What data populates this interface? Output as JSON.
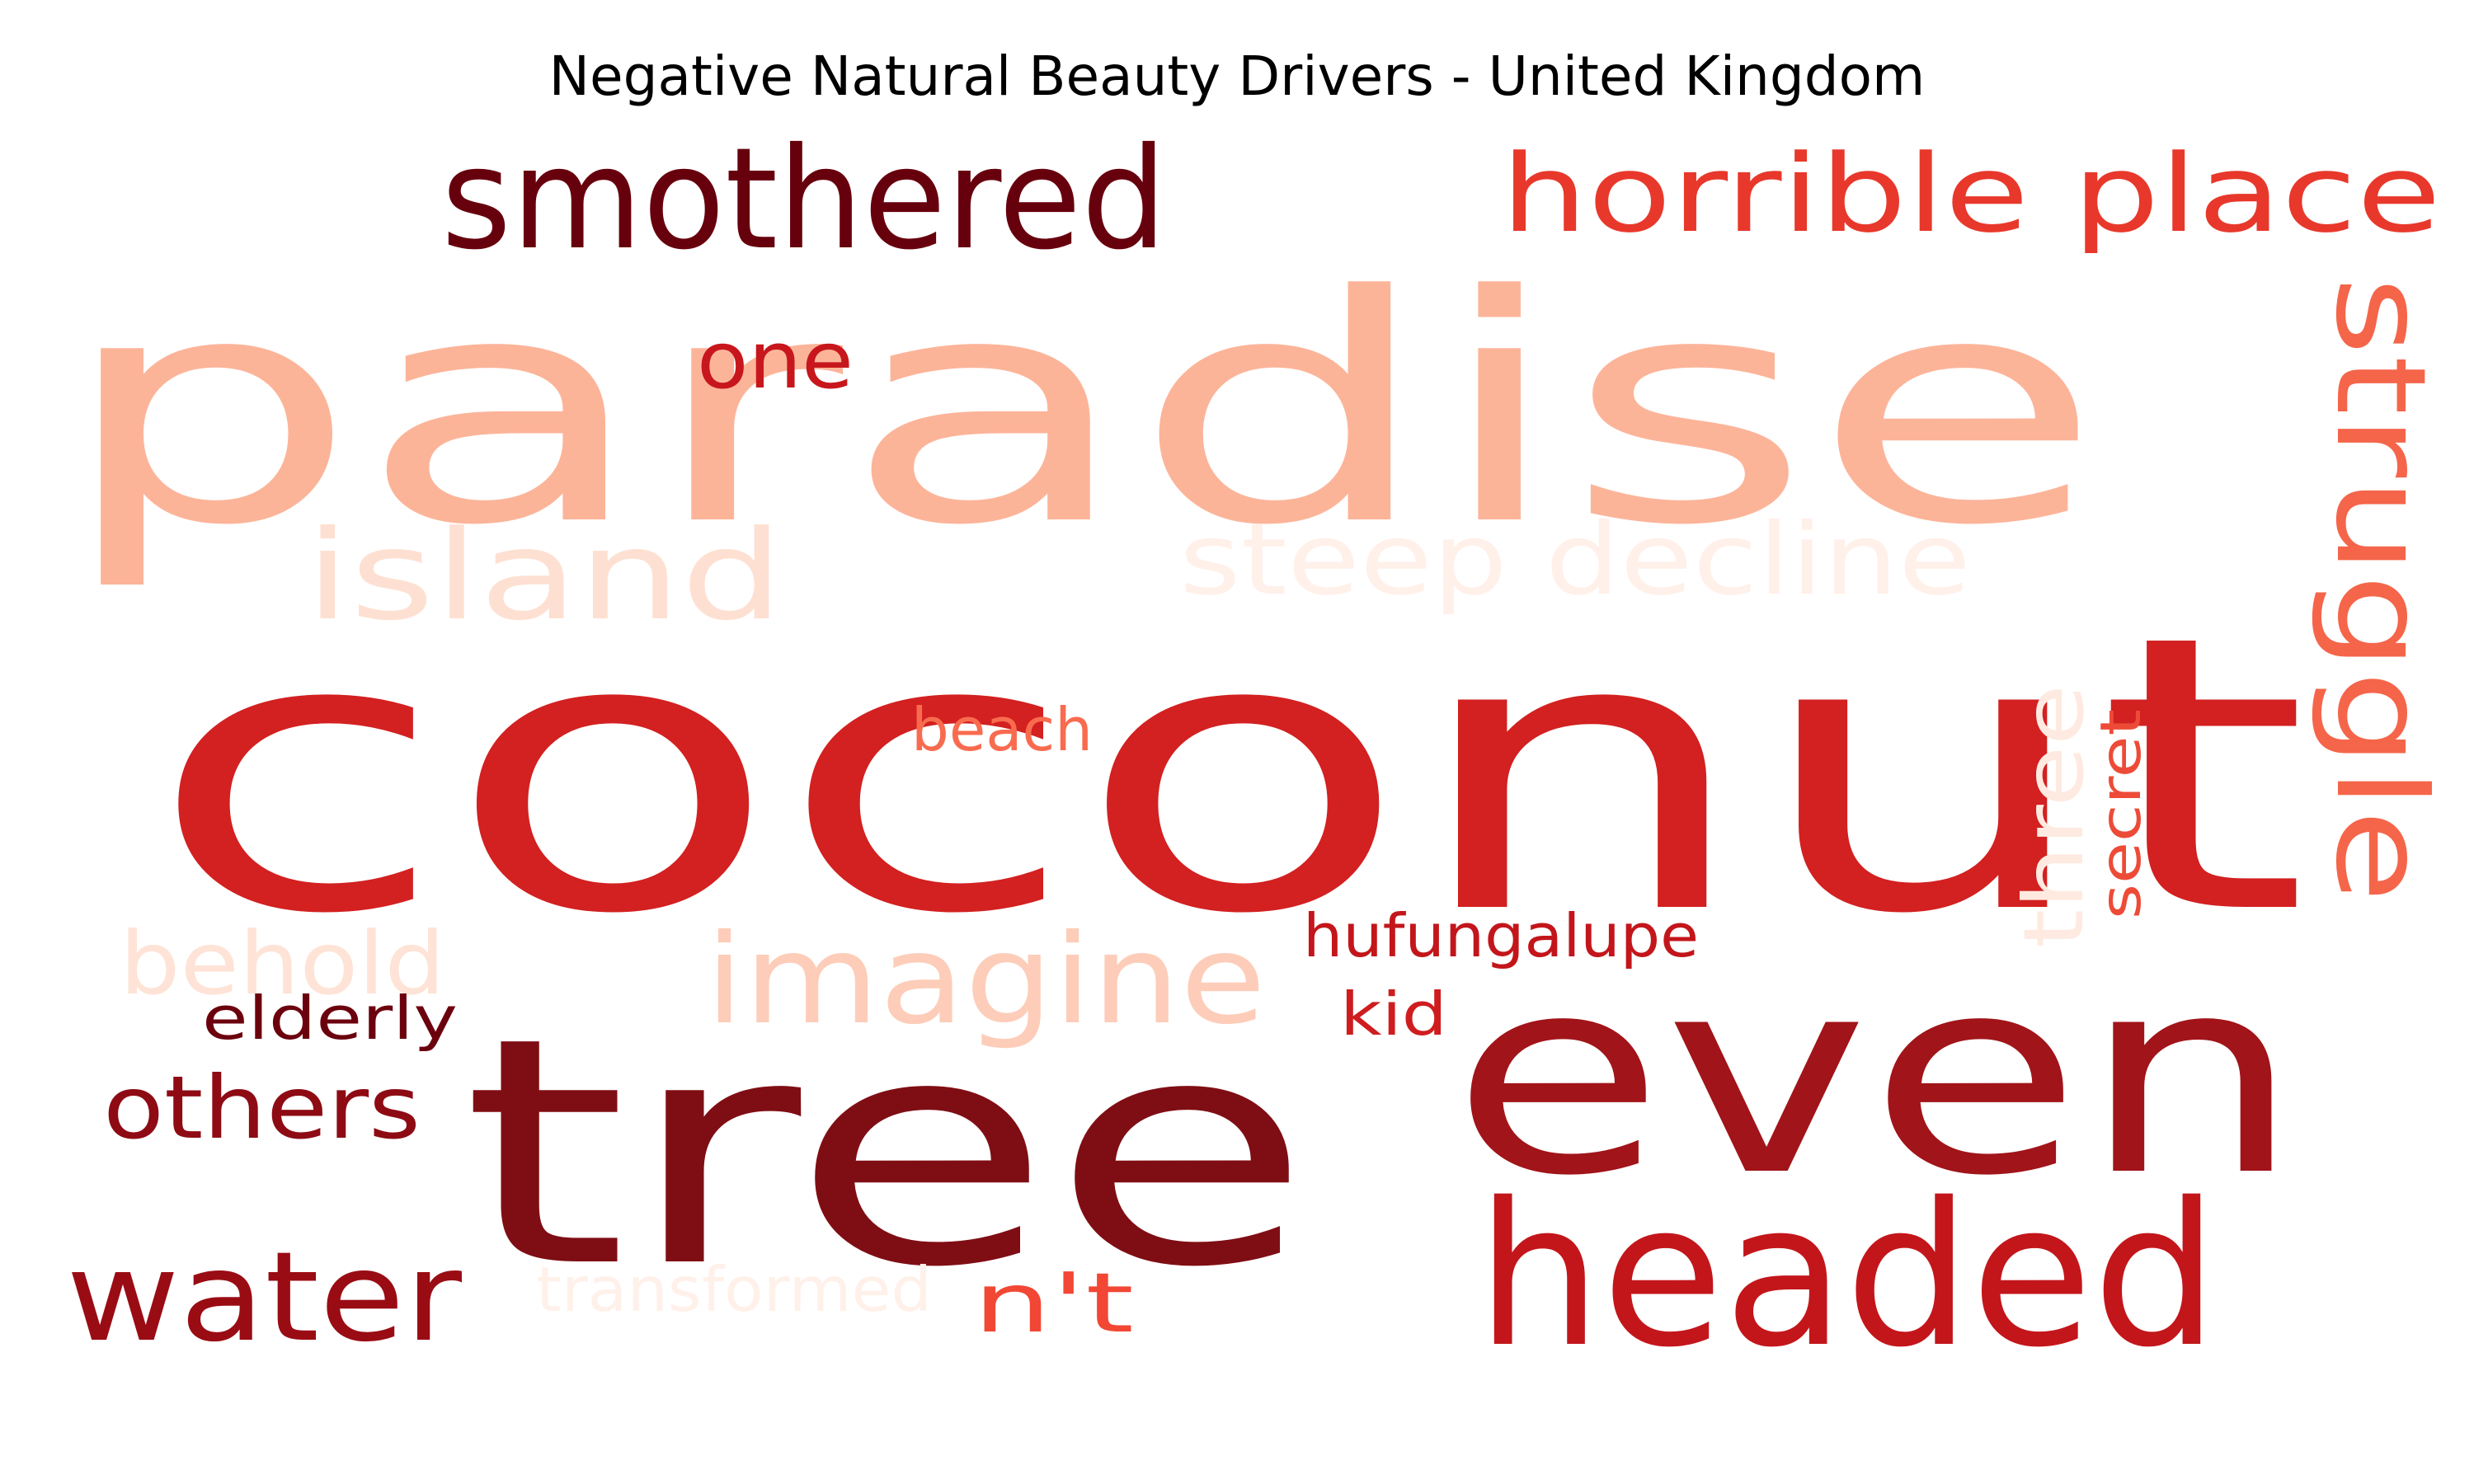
{
  "title": "Negative Natural Beauty Drivers - United Kingdom",
  "words": [
    {
      "text": "paradise",
      "color": "#fcb499",
      "rotate": 0
    },
    {
      "text": "coconut",
      "color": "#d32020",
      "rotate": 0
    },
    {
      "text": "tree",
      "color": "#7f0e14",
      "rotate": 0
    },
    {
      "text": "even",
      "color": "#a11419",
      "rotate": 0
    },
    {
      "text": "headed",
      "color": "#c3161b",
      "rotate": 0
    },
    {
      "text": "smothered",
      "color": "#67000d",
      "rotate": 0
    },
    {
      "text": "horrible place",
      "color": "#e8382b",
      "rotate": 0
    },
    {
      "text": "struggle",
      "color": "#f5654a",
      "rotate": 90
    },
    {
      "text": "island",
      "color": "#fee0d2",
      "rotate": 0
    },
    {
      "text": "steep decline",
      "color": "#fff0e9",
      "rotate": 0
    },
    {
      "text": "imagine",
      "color": "#fdcdb9",
      "rotate": 0
    },
    {
      "text": "water",
      "color": "#9a0c14",
      "rotate": 0
    },
    {
      "text": "others",
      "color": "#8e0b14",
      "rotate": 0
    },
    {
      "text": "behold",
      "color": "#fee3d6",
      "rotate": 0
    },
    {
      "text": "one",
      "color": "#c7171c",
      "rotate": 0
    },
    {
      "text": "beach",
      "color": "#f96b4f",
      "rotate": 0
    },
    {
      "text": "three",
      "color": "#feeae0",
      "rotate": -90
    },
    {
      "text": "secret",
      "color": "#ed4b37",
      "rotate": -90
    },
    {
      "text": "hufungalupe",
      "color": "#c3161b",
      "rotate": 0
    },
    {
      "text": "kid",
      "color": "#cf1d1f",
      "rotate": 0
    },
    {
      "text": "elderly",
      "color": "#6c010e",
      "rotate": 0
    },
    {
      "text": "transformed",
      "color": "#fff1ea",
      "rotate": 0
    },
    {
      "text": "n't",
      "color": "#f24734",
      "rotate": 0
    }
  ]
}
